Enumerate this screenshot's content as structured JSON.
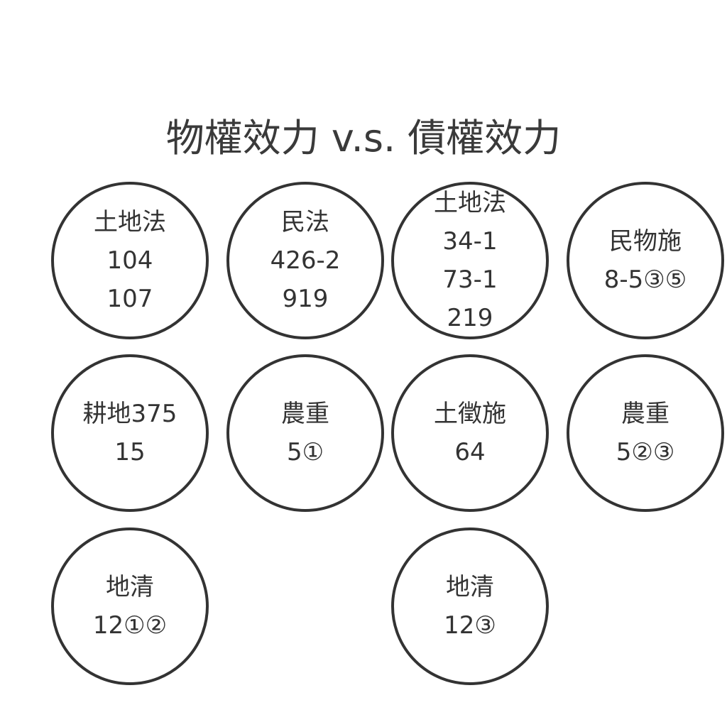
{
  "title": "物權效力 v.s. 債權效力",
  "circles": [
    {
      "lines": [
        "土地法",
        "104",
        "107"
      ]
    },
    {
      "lines": [
        "民法",
        "426-2",
        "919"
      ]
    },
    {
      "lines": [
        "土地法",
        "34-1",
        "73-1",
        "219"
      ]
    },
    {
      "lines": [
        "民物施",
        "8-5③⑤"
      ]
    },
    {
      "lines": [
        "耕地375",
        "15"
      ]
    },
    {
      "lines": [
        "農重",
        "5①"
      ]
    },
    {
      "lines": [
        "土徵施",
        "64"
      ]
    },
    {
      "lines": [
        "農重",
        "5②③"
      ]
    },
    {
      "lines": [
        "地清",
        "12①②"
      ]
    },
    {
      "lines": [
        "地清",
        "12③"
      ]
    }
  ]
}
